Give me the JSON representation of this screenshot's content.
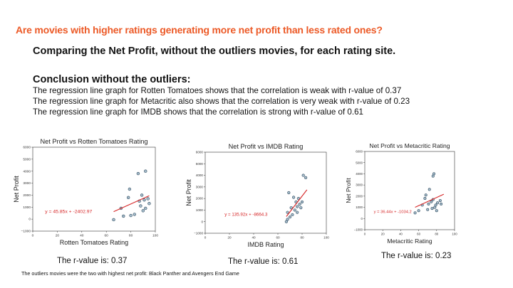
{
  "slide": {
    "title": "Are movies with higher ratings generating more net profit than less rated ones?",
    "subtitle": "Comparing the Net Profit, without the outliers movies, for each rating site.",
    "conclusion_heading": "Conclusion without the outliers:",
    "conclusion_lines": [
      "The regression line graph for Rotten Tomatoes shows that the correlation is weak with r-value of 0.37",
      "The regression line graph for Metacritic also shows that the correlation is very weak with r-value of 0.23",
      "The regression line graph for IMDB shows that the correlation is strong with r-value of 0.61"
    ],
    "footnote": "The outliers movies were the two with highest net profit: Black Panther and Avengers End Game",
    "colors": {
      "title": "#ec5a27",
      "regression_line": "#d62728",
      "point_edge": "#2e4a5e",
      "point_fill": "#a6bccb",
      "equation": "#d62728"
    }
  },
  "chart_data": [
    {
      "type": "scatter",
      "title": "Net Profit vs Rotten Tomatoes Rating",
      "xlabel": "Rotten Tomatoes Rating",
      "ylabel": "Net Profit",
      "xlim": [
        0,
        100
      ],
      "ylim": [
        -1000,
        6000
      ],
      "xticks": [
        0,
        20,
        40,
        60,
        80,
        100
      ],
      "yticks": [
        -1000,
        0,
        1000,
        2000,
        3000,
        4000,
        5000,
        6000
      ],
      "points": [
        [
          66,
          -50
        ],
        [
          72,
          900
        ],
        [
          74,
          250
        ],
        [
          78,
          1800
        ],
        [
          79,
          2500
        ],
        [
          80,
          300
        ],
        [
          83,
          400
        ],
        [
          86,
          3800
        ],
        [
          87,
          1500
        ],
        [
          88,
          1100
        ],
        [
          89,
          2000
        ],
        [
          90,
          700
        ],
        [
          91,
          1600
        ],
        [
          92,
          900
        ],
        [
          92,
          4000
        ],
        [
          94,
          1700
        ],
        [
          95,
          1300
        ]
      ],
      "regression": {
        "slope": 45.85,
        "intercept": -2402.97,
        "x_range": [
          66,
          95
        ]
      },
      "equation": "y = 45.85x + -2402.97",
      "equation_anchor": [
        10,
        500
      ],
      "r_label": "The r-value is: 0.37"
    },
    {
      "type": "scatter",
      "title": "Net Profit vs IMDB Rating",
      "xlabel": "IMDB Rating",
      "ylabel": "Net Profit",
      "xlim": [
        0,
        100
      ],
      "ylim": [
        -1000,
        6000
      ],
      "xticks": [
        0,
        20,
        40,
        60,
        80,
        100
      ],
      "yticks": [
        -1000,
        0,
        1000,
        2000,
        3000,
        4000,
        5000,
        6000
      ],
      "points": [
        [
          67,
          0
        ],
        [
          68,
          200
        ],
        [
          68,
          800
        ],
        [
          69,
          2500
        ],
        [
          70,
          400
        ],
        [
          71,
          1200
        ],
        [
          72,
          600
        ],
        [
          73,
          2100
        ],
        [
          74,
          1000
        ],
        [
          75,
          1700
        ],
        [
          76,
          800
        ],
        [
          76,
          1300
        ],
        [
          77,
          2000
        ],
        [
          78,
          1500
        ],
        [
          79,
          1200
        ],
        [
          80,
          1700
        ],
        [
          81,
          4000
        ],
        [
          83,
          3800
        ]
      ],
      "regression": {
        "slope": 135.92,
        "intercept": -8664.3,
        "x_range": [
          67,
          84
        ]
      },
      "equation": "y = 135.92x + -8664.3",
      "equation_anchor": [
        16,
        500
      ],
      "r_label": "The r-value is: 0.61"
    },
    {
      "type": "scatter",
      "title": "Net Profit vs Metacritic Rating",
      "xlabel": "Metacritic Rating",
      "ylabel": "Net Profit",
      "xlim": [
        0,
        100
      ],
      "ylim": [
        -1000,
        6000
      ],
      "xticks": [
        0,
        20,
        40,
        60,
        80,
        100
      ],
      "yticks": [
        -1000,
        0,
        1000,
        2000,
        3000,
        4000,
        5000,
        6000
      ],
      "points": [
        [
          56,
          500
        ],
        [
          60,
          700
        ],
        [
          64,
          1200
        ],
        [
          67,
          1800
        ],
        [
          68,
          2100
        ],
        [
          70,
          800
        ],
        [
          71,
          1300
        ],
        [
          72,
          2600
        ],
        [
          74,
          1500
        ],
        [
          75,
          900
        ],
        [
          76,
          1700
        ],
        [
          76,
          3800
        ],
        [
          77,
          4000
        ],
        [
          78,
          1000
        ],
        [
          79,
          1200
        ],
        [
          80,
          700
        ],
        [
          81,
          1400
        ],
        [
          84,
          1600
        ],
        [
          85,
          1300
        ]
      ],
      "regression": {
        "slope": 36.44,
        "intercept": -1034.2,
        "x_range": [
          56,
          88
        ]
      },
      "equation": "y = 36.44x + -1034.2",
      "equation_anchor": [
        10,
        500
      ],
      "r_label": "The r-value is: 0.23"
    }
  ]
}
